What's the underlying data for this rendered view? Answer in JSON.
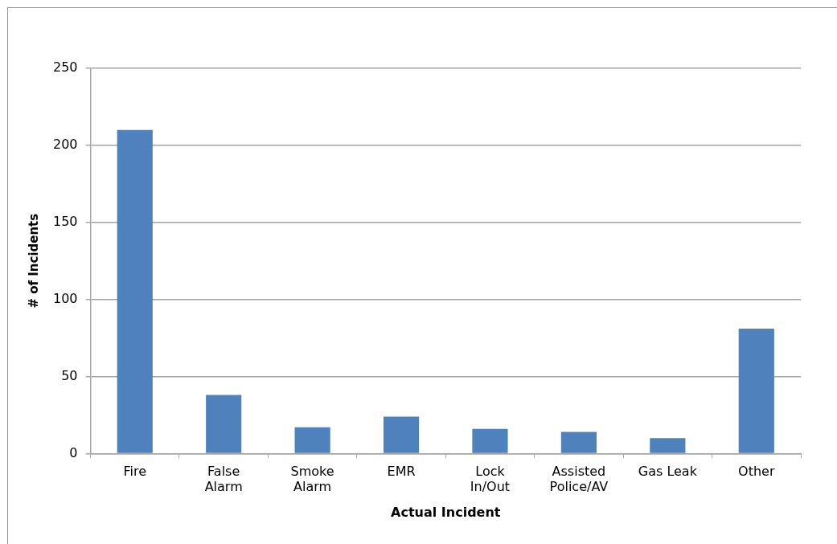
{
  "chart_data": {
    "type": "bar",
    "xlabel": "Actual Incident",
    "ylabel": "# of Incidents",
    "categories": [
      "Fire",
      "False Alarm",
      "Smoke Alarm",
      "EMR",
      "Lock In/Out",
      "Assisted Police/AV",
      "Gas Leak",
      "Other"
    ],
    "values": [
      210,
      38,
      17,
      24,
      16,
      14,
      10,
      81
    ],
    "color": "#4f81bd",
    "ylim": [
      0,
      250
    ],
    "yticks": [
      0,
      50,
      100,
      150,
      200,
      250
    ],
    "grid": "y",
    "legend": false
  }
}
